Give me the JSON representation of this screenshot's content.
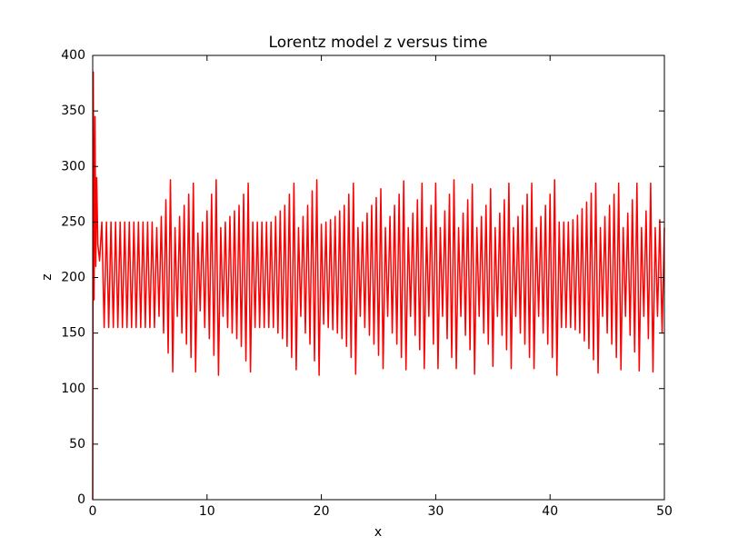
{
  "chart_data": {
    "type": "line",
    "title": "Lorentz model z versus time",
    "x_label": "x",
    "y_label": "z",
    "x": [
      0,
      0.05,
      0.12,
      0.2,
      0.27,
      0.35,
      0.45,
      0.6,
      0.8,
      1.0,
      1.2,
      1.4,
      1.6,
      1.8,
      2.0,
      2.2,
      2.4,
      2.6,
      2.8,
      3.0,
      3.2,
      3.4,
      3.6,
      3.8,
      4.0,
      4.2,
      4.4,
      4.6,
      4.8,
      5.0,
      5.2,
      5.4,
      5.6,
      5.8,
      6.0,
      6.2,
      6.4,
      6.6,
      6.8,
      7.0,
      7.2,
      7.4,
      7.6,
      7.8,
      8.0,
      8.2,
      8.4,
      8.6,
      8.8,
      9.0,
      9.2,
      9.4,
      9.6,
      9.8,
      10.0,
      10.2,
      10.4,
      10.6,
      10.8,
      11.0,
      11.2,
      11.4,
      11.6,
      11.8,
      12.0,
      12.2,
      12.4,
      12.6,
      12.8,
      13.0,
      13.2,
      13.4,
      13.6,
      13.8,
      14.0,
      14.2,
      14.4,
      14.6,
      14.8,
      15.0,
      15.2,
      15.4,
      15.6,
      15.8,
      16.0,
      16.2,
      16.4,
      16.6,
      16.8,
      17.0,
      17.2,
      17.4,
      17.6,
      17.8,
      18.0,
      18.2,
      18.4,
      18.6,
      18.8,
      19.0,
      19.2,
      19.4,
      19.6,
      19.8,
      20.0,
      20.2,
      20.4,
      20.6,
      20.8,
      21.0,
      21.2,
      21.4,
      21.6,
      21.8,
      22.0,
      22.2,
      22.4,
      22.6,
      22.8,
      23.0,
      23.2,
      23.4,
      23.6,
      23.8,
      24.0,
      24.2,
      24.4,
      24.6,
      24.8,
      25.0,
      25.2,
      25.4,
      25.6,
      25.8,
      26.0,
      26.2,
      26.4,
      26.6,
      26.8,
      27.0,
      27.2,
      27.4,
      27.6,
      27.8,
      28.0,
      28.2,
      28.4,
      28.6,
      28.8,
      29.0,
      29.2,
      29.4,
      29.6,
      29.8,
      30.0,
      30.2,
      30.4,
      30.6,
      30.8,
      31.0,
      31.2,
      31.4,
      31.6,
      31.8,
      32.0,
      32.2,
      32.4,
      32.6,
      32.8,
      33.0,
      33.2,
      33.4,
      33.6,
      33.8,
      34.0,
      34.2,
      34.4,
      34.6,
      34.8,
      35.0,
      35.2,
      35.4,
      35.6,
      35.8,
      36.0,
      36.2,
      36.4,
      36.6,
      36.8,
      37.0,
      37.2,
      37.4,
      37.6,
      37.8,
      38.0,
      38.2,
      38.4,
      38.6,
      38.8,
      39.0,
      39.2,
      39.4,
      39.6,
      39.8,
      40.0,
      40.2,
      40.4,
      40.6,
      40.8,
      41.0,
      41.2,
      41.4,
      41.6,
      41.8,
      42.0,
      42.2,
      42.4,
      42.6,
      42.8,
      43.0,
      43.2,
      43.4,
      43.6,
      43.8,
      44.0,
      44.2,
      44.4,
      44.6,
      44.8,
      45.0,
      45.2,
      45.4,
      45.6,
      45.8,
      46.0,
      46.2,
      46.4,
      46.6,
      46.8,
      47.0,
      47.2,
      47.4,
      47.6,
      47.8,
      48.0,
      48.2,
      48.4,
      48.6,
      48.8,
      49.0,
      49.2,
      49.4,
      49.6,
      49.8,
      50.0
    ],
    "series": [
      {
        "name": "z",
        "color": "#ff0000",
        "values": [
          0,
          385,
          180,
          345,
          210,
          290,
          230,
          215,
          250,
          155,
          250,
          155,
          250,
          155,
          250,
          155,
          250,
          155,
          250,
          155,
          250,
          155,
          250,
          155,
          250,
          155,
          250,
          155,
          250,
          155,
          250,
          155,
          245,
          165,
          255,
          150,
          270,
          132,
          288,
          115,
          245,
          165,
          255,
          150,
          265,
          140,
          275,
          128,
          285,
          115,
          240,
          170,
          250,
          155,
          260,
          145,
          275,
          130,
          288,
          112,
          245,
          165,
          250,
          155,
          255,
          150,
          260,
          145,
          265,
          138,
          275,
          125,
          285,
          115,
          250,
          155,
          250,
          155,
          250,
          155,
          250,
          155,
          250,
          155,
          255,
          150,
          260,
          145,
          265,
          138,
          275,
          128,
          285,
          117,
          245,
          165,
          255,
          150,
          265,
          140,
          278,
          125,
          288,
          112,
          248,
          158,
          250,
          155,
          252,
          153,
          255,
          150,
          260,
          145,
          265,
          138,
          275,
          128,
          285,
          113,
          245,
          165,
          250,
          155,
          258,
          148,
          265,
          140,
          272,
          130,
          280,
          118,
          245,
          165,
          255,
          150,
          265,
          140,
          275,
          128,
          287,
          117,
          245,
          165,
          258,
          148,
          270,
          135,
          285,
          118,
          245,
          165,
          265,
          140,
          285,
          118,
          245,
          165,
          260,
          145,
          275,
          128,
          288,
          118,
          245,
          165,
          258,
          148,
          270,
          135,
          284,
          113,
          245,
          165,
          255,
          150,
          265,
          140,
          280,
          120,
          245,
          165,
          258,
          148,
          270,
          135,
          285,
          118,
          245,
          165,
          255,
          150,
          265,
          140,
          275,
          128,
          285,
          118,
          245,
          165,
          255,
          150,
          265,
          140,
          275,
          128,
          288,
          112,
          250,
          155,
          250,
          155,
          250,
          155,
          252,
          153,
          256,
          150,
          262,
          143,
          268,
          136,
          276,
          126,
          285,
          114,
          245,
          165,
          255,
          150,
          265,
          140,
          275,
          128,
          285,
          117,
          245,
          165,
          258,
          148,
          270,
          133,
          285,
          116,
          245,
          165,
          260,
          145,
          285,
          115,
          245,
          165,
          252,
          150,
          245
        ]
      }
    ],
    "xlim": [
      0,
      50
    ],
    "xticks": [
      0,
      10,
      20,
      30,
      40,
      50
    ],
    "ylim": [
      0,
      400
    ],
    "yticks": [
      0,
      50,
      100,
      150,
      200,
      250,
      300,
      350,
      400
    ]
  }
}
